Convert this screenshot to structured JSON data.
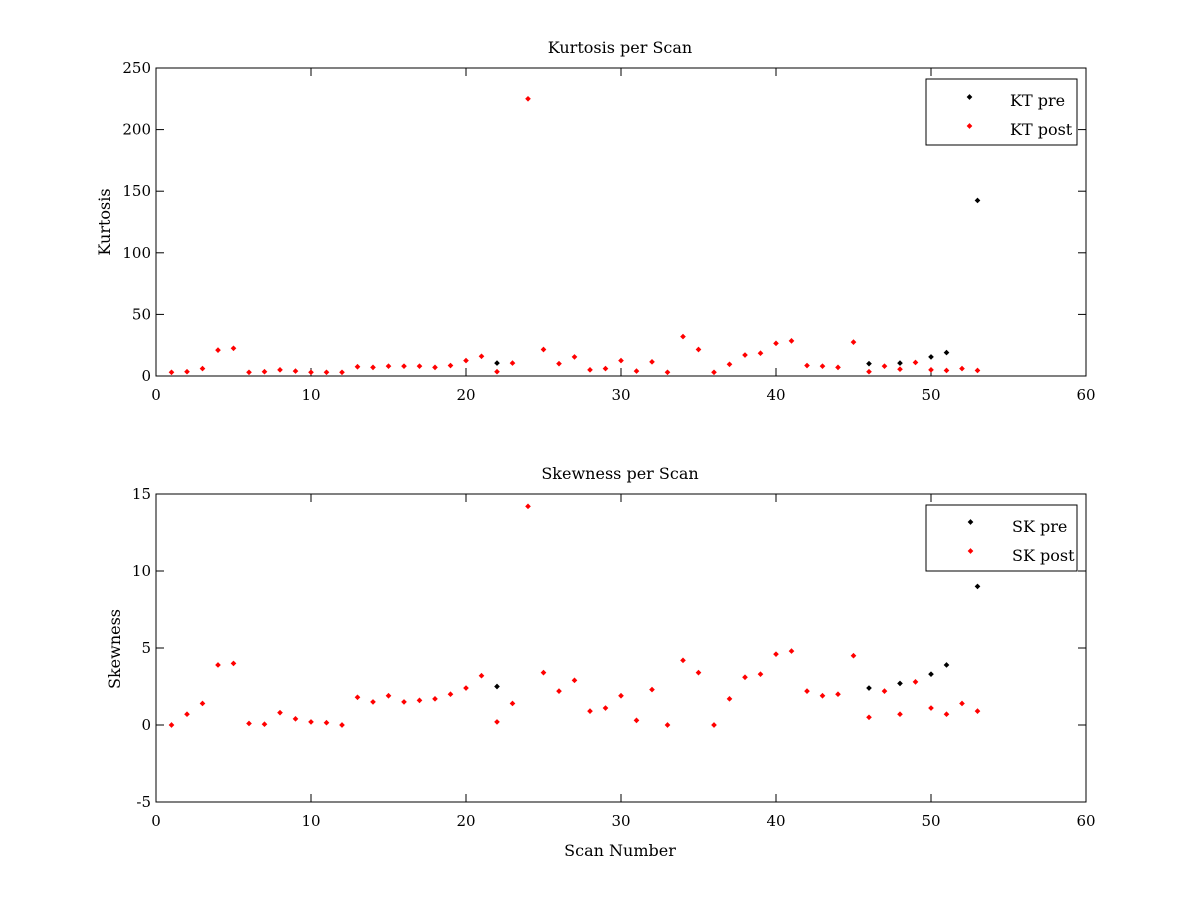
{
  "chart_data": [
    {
      "type": "scatter",
      "title": "Kurtosis per Scan",
      "xlabel": "",
      "ylabel": "Kurtosis",
      "xlim": [
        0,
        60
      ],
      "ylim": [
        0,
        250
      ],
      "xticks": [
        "0",
        "10",
        "20",
        "30",
        "40",
        "50",
        "60"
      ],
      "yticks": [
        "0",
        "50",
        "100",
        "150",
        "200",
        "250"
      ],
      "grid": false,
      "legend_position": "top-right",
      "series": [
        {
          "name": "KT pre",
          "color": "#000000",
          "points": [
            [
              22,
              10.5
            ],
            [
              46,
              10
            ],
            [
              48,
              10.5
            ],
            [
              50,
              15.5
            ],
            [
              51,
              19
            ],
            [
              53,
              142.5
            ]
          ]
        },
        {
          "name": "KT post",
          "color": "#ff0000",
          "points": [
            [
              1,
              3
            ],
            [
              2,
              3.5
            ],
            [
              3,
              6
            ],
            [
              4,
              21
            ],
            [
              5,
              22.5
            ],
            [
              6,
              3
            ],
            [
              7,
              3.5
            ],
            [
              8,
              5
            ],
            [
              9,
              4
            ],
            [
              10,
              3
            ],
            [
              11,
              3
            ],
            [
              12,
              3
            ],
            [
              13,
              7.5
            ],
            [
              14,
              7
            ],
            [
              15,
              8
            ],
            [
              16,
              8
            ],
            [
              17,
              8
            ],
            [
              18,
              7
            ],
            [
              19,
              8.5
            ],
            [
              20,
              12.5
            ],
            [
              21,
              16
            ],
            [
              22,
              3.5
            ],
            [
              23,
              10.5
            ],
            [
              24,
              225
            ],
            [
              25,
              21.5
            ],
            [
              26,
              10
            ],
            [
              27,
              15.5
            ],
            [
              28,
              5
            ],
            [
              29,
              6
            ],
            [
              30,
              12.5
            ],
            [
              31,
              4
            ],
            [
              32,
              11.5
            ],
            [
              33,
              3
            ],
            [
              34,
              32
            ],
            [
              35,
              21.5
            ],
            [
              36,
              3
            ],
            [
              37,
              9.5
            ],
            [
              38,
              17
            ],
            [
              39,
              18.5
            ],
            [
              40,
              26.5
            ],
            [
              41,
              28.5
            ],
            [
              42,
              8.5
            ],
            [
              43,
              8
            ],
            [
              44,
              7
            ],
            [
              45,
              27.5
            ],
            [
              46,
              3.5
            ],
            [
              47,
              8
            ],
            [
              48,
              5.5
            ],
            [
              49,
              11
            ],
            [
              50,
              5
            ],
            [
              51,
              4.5
            ],
            [
              52,
              6
            ],
            [
              53,
              4.5
            ]
          ]
        }
      ]
    },
    {
      "type": "scatter",
      "title": "Skewness per Scan",
      "xlabel": "Scan Number",
      "ylabel": "Skewness",
      "xlim": [
        0,
        60
      ],
      "ylim": [
        -5,
        15
      ],
      "xticks": [
        "0",
        "10",
        "20",
        "30",
        "40",
        "50",
        "60"
      ],
      "yticks": [
        "-5",
        "0",
        "5",
        "10",
        "15"
      ],
      "grid": false,
      "legend_position": "top-right",
      "series": [
        {
          "name": "SK pre",
          "color": "#000000",
          "points": [
            [
              22,
              2.5
            ],
            [
              46,
              2.4
            ],
            [
              48,
              2.7
            ],
            [
              50,
              3.3
            ],
            [
              51,
              3.9
            ],
            [
              53,
              9
            ]
          ]
        },
        {
          "name": "SK post",
          "color": "#ff0000",
          "points": [
            [
              1,
              0
            ],
            [
              2,
              0.7
            ],
            [
              3,
              1.4
            ],
            [
              4,
              3.9
            ],
            [
              5,
              4
            ],
            [
              6,
              0.1
            ],
            [
              7,
              0.05
            ],
            [
              8,
              0.8
            ],
            [
              9,
              0.4
            ],
            [
              10,
              0.2
            ],
            [
              11,
              0.15
            ],
            [
              12,
              0
            ],
            [
              13,
              1.8
            ],
            [
              14,
              1.5
            ],
            [
              15,
              1.9
            ],
            [
              16,
              1.5
            ],
            [
              17,
              1.6
            ],
            [
              18,
              1.7
            ],
            [
              19,
              2
            ],
            [
              20,
              2.4
            ],
            [
              21,
              3.2
            ],
            [
              22,
              0.2
            ],
            [
              23,
              1.4
            ],
            [
              24,
              14.2
            ],
            [
              25,
              3.4
            ],
            [
              26,
              2.2
            ],
            [
              27,
              2.9
            ],
            [
              28,
              0.9
            ],
            [
              29,
              1.1
            ],
            [
              30,
              1.9
            ],
            [
              31,
              0.3
            ],
            [
              32,
              2.3
            ],
            [
              33,
              0
            ],
            [
              34,
              4.2
            ],
            [
              35,
              3.4
            ],
            [
              36,
              0
            ],
            [
              37,
              1.7
            ],
            [
              38,
              3.1
            ],
            [
              39,
              3.3
            ],
            [
              40,
              4.6
            ],
            [
              41,
              4.8
            ],
            [
              42,
              2.2
            ],
            [
              43,
              1.9
            ],
            [
              44,
              2
            ],
            [
              45,
              4.5
            ],
            [
              46,
              0.5
            ],
            [
              47,
              2.2
            ],
            [
              48,
              0.7
            ],
            [
              49,
              2.8
            ],
            [
              50,
              1.1
            ],
            [
              51,
              0.7
            ],
            [
              52,
              1.4
            ],
            [
              53,
              0.9
            ]
          ]
        }
      ]
    }
  ]
}
